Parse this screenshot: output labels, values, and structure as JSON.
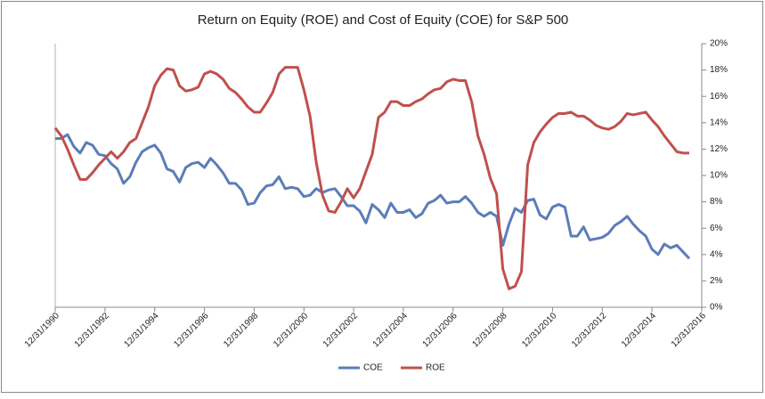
{
  "chart_data": {
    "type": "line",
    "title": "Return on Equity (ROE)  and  Cost of Equity (COE) for S&P 500",
    "x": [
      "1990-12-31",
      "1991-03-31",
      "1991-06-30",
      "1991-09-30",
      "1991-12-31",
      "1992-03-31",
      "1992-06-30",
      "1992-09-30",
      "1992-12-31",
      "1993-03-31",
      "1993-06-30",
      "1993-09-30",
      "1993-12-31",
      "1994-03-31",
      "1994-06-30",
      "1994-09-30",
      "1994-12-31",
      "1995-03-31",
      "1995-06-30",
      "1995-09-30",
      "1995-12-31",
      "1996-03-31",
      "1996-06-30",
      "1996-09-30",
      "1996-12-31",
      "1997-03-31",
      "1997-06-30",
      "1997-09-30",
      "1997-12-31",
      "1998-03-31",
      "1998-06-30",
      "1998-09-30",
      "1998-12-31",
      "1999-03-31",
      "1999-06-30",
      "1999-09-30",
      "1999-12-31",
      "2000-03-31",
      "2000-06-30",
      "2000-09-30",
      "2000-12-31",
      "2001-03-31",
      "2001-06-30",
      "2001-09-30",
      "2001-12-31",
      "2002-03-31",
      "2002-06-30",
      "2002-09-30",
      "2002-12-31",
      "2003-03-31",
      "2003-06-30",
      "2003-09-30",
      "2003-12-31",
      "2004-03-31",
      "2004-06-30",
      "2004-09-30",
      "2004-12-31",
      "2005-03-31",
      "2005-06-30",
      "2005-09-30",
      "2005-12-31",
      "2006-03-31",
      "2006-06-30",
      "2006-09-30",
      "2006-12-31",
      "2007-03-31",
      "2007-06-30",
      "2007-09-30",
      "2007-12-31",
      "2008-03-31",
      "2008-06-30",
      "2008-09-30",
      "2008-12-31",
      "2009-03-31",
      "2009-06-30",
      "2009-09-30",
      "2009-12-31",
      "2010-03-31",
      "2010-06-30",
      "2010-09-30",
      "2010-12-31",
      "2011-03-31",
      "2011-06-30",
      "2011-09-30",
      "2011-12-31",
      "2012-03-31",
      "2012-06-30",
      "2012-09-30",
      "2012-12-31",
      "2013-03-31",
      "2013-06-30",
      "2013-09-30",
      "2013-12-31",
      "2014-03-31",
      "2014-06-30",
      "2014-09-30",
      "2014-12-31",
      "2015-03-31",
      "2015-06-30",
      "2015-09-30",
      "2015-12-31",
      "2016-03-31",
      "2016-06-30"
    ],
    "series": [
      {
        "name": "COE",
        "color": "#5b7db8",
        "values": [
          12.8,
          12.8,
          13.1,
          12.2,
          11.7,
          12.5,
          12.3,
          11.6,
          11.5,
          10.9,
          10.5,
          9.4,
          9.9,
          11.0,
          11.8,
          12.1,
          12.3,
          11.7,
          10.5,
          10.3,
          9.5,
          10.6,
          10.9,
          11.0,
          10.6,
          11.3,
          10.8,
          10.2,
          9.4,
          9.4,
          8.9,
          7.8,
          7.9,
          8.7,
          9.2,
          9.3,
          9.9,
          9.0,
          9.1,
          9.0,
          8.4,
          8.5,
          9.0,
          8.7,
          8.9,
          9.0,
          8.4,
          7.7,
          7.7,
          7.3,
          6.4,
          7.8,
          7.4,
          6.8,
          7.9,
          7.2,
          7.2,
          7.4,
          6.8,
          7.1,
          7.9,
          8.1,
          8.5,
          7.9,
          8.0,
          8.0,
          8.4,
          7.9,
          7.2,
          6.9,
          7.2,
          6.9,
          4.7,
          6.3,
          7.5,
          7.2,
          8.1,
          8.2,
          7.0,
          6.7,
          7.6,
          7.8,
          7.6,
          5.4,
          5.4,
          6.1,
          5.1,
          5.2,
          5.3,
          5.6,
          6.2,
          6.5,
          6.9,
          6.3,
          5.8,
          5.4,
          4.4,
          4.0,
          4.8,
          4.5,
          4.7,
          4.2,
          3.7
        ]
      },
      {
        "name": "ROE",
        "color": "#c0504d",
        "values": [
          13.6,
          13.0,
          12.0,
          10.8,
          9.7,
          9.7,
          10.2,
          10.8,
          11.3,
          11.8,
          11.3,
          11.8,
          12.5,
          12.8,
          14.0,
          15.2,
          16.8,
          17.6,
          18.1,
          18.0,
          16.8,
          16.4,
          16.5,
          16.7,
          17.7,
          17.9,
          17.7,
          17.3,
          16.6,
          16.3,
          15.8,
          15.2,
          14.8,
          14.8,
          15.5,
          16.3,
          17.7,
          18.2,
          18.2,
          18.2,
          16.5,
          14.5,
          11.0,
          8.5,
          7.3,
          7.2,
          8.0,
          9.0,
          8.3,
          9.0,
          10.3,
          11.6,
          14.4,
          14.8,
          15.6,
          15.6,
          15.3,
          15.3,
          15.6,
          15.8,
          16.2,
          16.5,
          16.6,
          17.1,
          17.3,
          17.2,
          17.2,
          15.6,
          13.0,
          11.6,
          9.8,
          8.6,
          2.9,
          1.4,
          1.6,
          2.7,
          10.8,
          12.5,
          13.3,
          13.9,
          14.4,
          14.7,
          14.7,
          14.8,
          14.5,
          14.5,
          14.2,
          13.8,
          13.6,
          13.5,
          13.7,
          14.1,
          14.7,
          14.6,
          14.7,
          14.8,
          14.2,
          13.7,
          13.0,
          12.4,
          11.8,
          11.7,
          11.7
        ]
      }
    ],
    "xlim": [
      "1990-12-31",
      "2016-12-31"
    ],
    "xticks": [
      {
        "value": "1990-12-31",
        "label": "12/31/1990"
      },
      {
        "value": "1992-12-31",
        "label": "12/31/1992"
      },
      {
        "value": "1994-12-31",
        "label": "12/31/1994"
      },
      {
        "value": "1996-12-31",
        "label": "12/31/1996"
      },
      {
        "value": "1998-12-31",
        "label": "12/31/1998"
      },
      {
        "value": "2000-12-31",
        "label": "12/31/2000"
      },
      {
        "value": "2002-12-31",
        "label": "12/31/2002"
      },
      {
        "value": "2004-12-31",
        "label": "12/31/2004"
      },
      {
        "value": "2006-12-31",
        "label": "12/31/2006"
      },
      {
        "value": "2008-12-31",
        "label": "12/31/2008"
      },
      {
        "value": "2010-12-31",
        "label": "12/31/2010"
      },
      {
        "value": "2012-12-31",
        "label": "12/31/2012"
      },
      {
        "value": "2014-12-31",
        "label": "12/31/2014"
      },
      {
        "value": "2016-12-31",
        "label": "12/31/2016"
      }
    ],
    "ylim": [
      0,
      20
    ],
    "yticks": [
      {
        "value": 0,
        "label": "0%"
      },
      {
        "value": 2,
        "label": "2%"
      },
      {
        "value": 4,
        "label": "4%"
      },
      {
        "value": 6,
        "label": "6%"
      },
      {
        "value": 8,
        "label": "8%"
      },
      {
        "value": 10,
        "label": "10%"
      },
      {
        "value": 12,
        "label": "12%"
      },
      {
        "value": 14,
        "label": "14%"
      },
      {
        "value": 16,
        "label": "16%"
      },
      {
        "value": 18,
        "label": "18%"
      },
      {
        "value": 20,
        "label": "20%"
      }
    ],
    "legend": "bottom"
  }
}
